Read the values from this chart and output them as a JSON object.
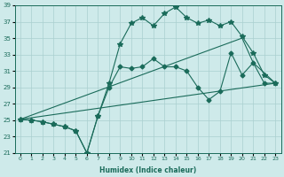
{
  "xlabel": "Humidex (Indice chaleur)",
  "background_color": "#ceeaea",
  "grid_color": "#aacfcf",
  "line_color": "#1a6b5a",
  "xlim": [
    -0.5,
    23.5
  ],
  "ylim": [
    21,
    39
  ],
  "xticks": [
    0,
    1,
    2,
    3,
    4,
    5,
    6,
    7,
    8,
    9,
    10,
    11,
    12,
    13,
    14,
    15,
    16,
    17,
    18,
    19,
    20,
    21,
    22,
    23
  ],
  "yticks": [
    21,
    23,
    25,
    27,
    29,
    31,
    33,
    35,
    37,
    39
  ],
  "series": [
    {
      "x": [
        0,
        1,
        2,
        3,
        4,
        5,
        6,
        7,
        8,
        9,
        10,
        11,
        12,
        13,
        14,
        15,
        16,
        17,
        18,
        19,
        20,
        21,
        22,
        23
      ],
      "y": [
        25.1,
        25.0,
        24.8,
        24.5,
        24.2,
        23.7,
        21.0,
        25.5,
        29.5,
        34.3,
        36.8,
        37.5,
        36.5,
        38.0,
        38.8,
        37.5,
        36.8,
        37.2,
        36.5,
        37.0,
        35.2,
        33.2,
        30.5,
        29.5
      ],
      "marker": "*",
      "markersize": 4
    },
    {
      "x": [
        0,
        1,
        2,
        3,
        4,
        5,
        6,
        7,
        8,
        9,
        10,
        11,
        12,
        13,
        14,
        15,
        16,
        17,
        18,
        19,
        20,
        21,
        22,
        23
      ],
      "y": [
        25.1,
        25.0,
        24.8,
        24.5,
        24.2,
        23.7,
        21.0,
        25.5,
        29.0,
        31.5,
        31.3,
        31.5,
        32.5,
        31.5,
        31.5,
        31.0,
        29.0,
        27.5,
        28.5,
        33.2,
        30.5,
        32.0,
        29.5,
        29.5
      ],
      "marker": "D",
      "markersize": 2.5
    },
    {
      "x": [
        0,
        20,
        21,
        23
      ],
      "y": [
        25.1,
        35.0,
        32.0,
        29.5
      ],
      "marker": null,
      "markersize": 0
    },
    {
      "x": [
        0,
        23
      ],
      "y": [
        25.1,
        29.5
      ],
      "marker": null,
      "markersize": 0
    }
  ]
}
